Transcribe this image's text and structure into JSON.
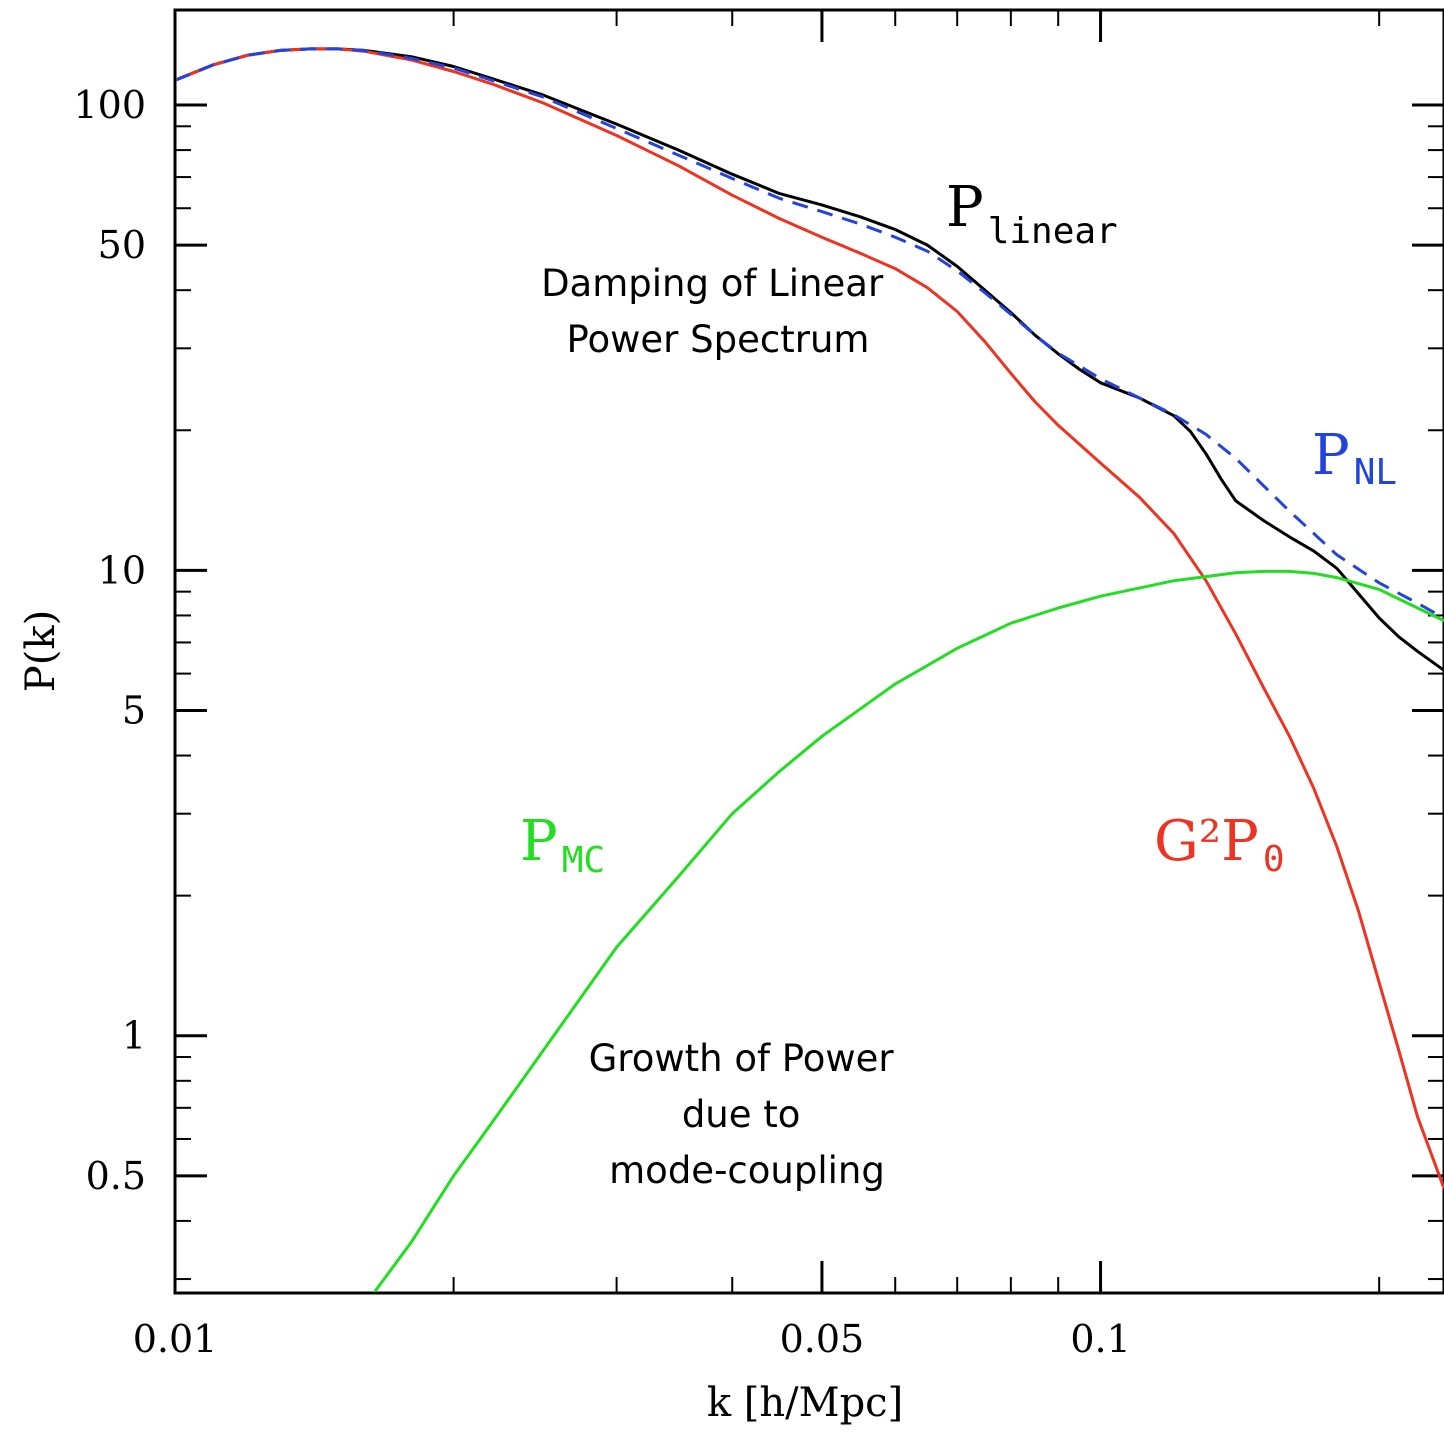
{
  "chart_data": {
    "type": "line",
    "xlabel": "k [h/Mpc]",
    "ylabel": "P(k)",
    "x_scale": "log",
    "y_scale": "log",
    "xlim": [
      0.01,
      0.235
    ],
    "ylim": [
      0.28,
      160
    ],
    "x_ticks": [
      {
        "value": 0.01,
        "label": "0.01"
      },
      {
        "value": 0.05,
        "label": "0.05"
      },
      {
        "value": 0.1,
        "label": "0.1"
      }
    ],
    "y_ticks": [
      {
        "value": 0.5,
        "label": "0.5"
      },
      {
        "value": 1,
        "label": "1"
      },
      {
        "value": 5,
        "label": "5"
      },
      {
        "value": 10,
        "label": "10"
      },
      {
        "value": 50,
        "label": "50"
      },
      {
        "value": 100,
        "label": "100"
      }
    ],
    "series": [
      {
        "id": "linear",
        "color": "#000000",
        "dash": "solid",
        "label": {
          "main": "P",
          "sub": "linear"
        },
        "points": [
          [
            0.01,
            113
          ],
          [
            0.011,
            122
          ],
          [
            0.012,
            128
          ],
          [
            0.013,
            131
          ],
          [
            0.014,
            132
          ],
          [
            0.015,
            132
          ],
          [
            0.016,
            131
          ],
          [
            0.018,
            127
          ],
          [
            0.02,
            121
          ],
          [
            0.022,
            114
          ],
          [
            0.025,
            105
          ],
          [
            0.03,
            91
          ],
          [
            0.035,
            80
          ],
          [
            0.04,
            71
          ],
          [
            0.045,
            64.5
          ],
          [
            0.05,
            61
          ],
          [
            0.055,
            57.5
          ],
          [
            0.06,
            54
          ],
          [
            0.065,
            50
          ],
          [
            0.07,
            45
          ],
          [
            0.075,
            40
          ],
          [
            0.08,
            35.8
          ],
          [
            0.085,
            32
          ],
          [
            0.09,
            29.2
          ],
          [
            0.095,
            27
          ],
          [
            0.1,
            25.3
          ],
          [
            0.11,
            23.5
          ],
          [
            0.12,
            21.5
          ],
          [
            0.125,
            19.9
          ],
          [
            0.13,
            17.8
          ],
          [
            0.135,
            15.7
          ],
          [
            0.14,
            14.1
          ],
          [
            0.15,
            12.8
          ],
          [
            0.16,
            11.8
          ],
          [
            0.17,
            11
          ],
          [
            0.18,
            10.1
          ],
          [
            0.19,
            8.9
          ],
          [
            0.2,
            7.9
          ],
          [
            0.21,
            7.2
          ],
          [
            0.22,
            6.7
          ],
          [
            0.235,
            6.1
          ]
        ]
      },
      {
        "id": "nl",
        "color": "#2244dd",
        "dash": "dashed",
        "label": {
          "main": "P",
          "sub": "NL"
        },
        "points": [
          [
            0.01,
            113
          ],
          [
            0.011,
            122
          ],
          [
            0.012,
            128
          ],
          [
            0.013,
            131
          ],
          [
            0.014,
            132
          ],
          [
            0.015,
            132
          ],
          [
            0.016,
            131
          ],
          [
            0.018,
            126
          ],
          [
            0.02,
            120
          ],
          [
            0.022,
            113
          ],
          [
            0.025,
            104
          ],
          [
            0.03,
            89
          ],
          [
            0.035,
            78
          ],
          [
            0.04,
            69.5
          ],
          [
            0.045,
            63
          ],
          [
            0.05,
            59
          ],
          [
            0.055,
            55.5
          ],
          [
            0.06,
            52
          ],
          [
            0.065,
            48.5
          ],
          [
            0.07,
            44
          ],
          [
            0.075,
            39.5
          ],
          [
            0.08,
            35.5
          ],
          [
            0.085,
            32
          ],
          [
            0.09,
            29.3
          ],
          [
            0.1,
            25.8
          ],
          [
            0.11,
            23.5
          ],
          [
            0.12,
            21.6
          ],
          [
            0.13,
            19.6
          ],
          [
            0.14,
            17.4
          ],
          [
            0.15,
            15.2
          ],
          [
            0.16,
            13.4
          ],
          [
            0.17,
            12
          ],
          [
            0.18,
            10.8
          ],
          [
            0.2,
            9.4
          ],
          [
            0.22,
            8.5
          ],
          [
            0.235,
            7.9
          ]
        ]
      },
      {
        "id": "g2p0",
        "color": "#ee3322",
        "dash": "solid",
        "label": {
          "main": "G²P",
          "sub": "0"
        },
        "points": [
          [
            0.01,
            113
          ],
          [
            0.011,
            122
          ],
          [
            0.012,
            128
          ],
          [
            0.013,
            131
          ],
          [
            0.014,
            132
          ],
          [
            0.015,
            132
          ],
          [
            0.016,
            130.5
          ],
          [
            0.018,
            125
          ],
          [
            0.02,
            118
          ],
          [
            0.022,
            111
          ],
          [
            0.025,
            101
          ],
          [
            0.03,
            86
          ],
          [
            0.035,
            74
          ],
          [
            0.04,
            64
          ],
          [
            0.045,
            57
          ],
          [
            0.05,
            52
          ],
          [
            0.055,
            48
          ],
          [
            0.06,
            44.5
          ],
          [
            0.065,
            40.5
          ],
          [
            0.07,
            36
          ],
          [
            0.075,
            31
          ],
          [
            0.08,
            26.5
          ],
          [
            0.085,
            23
          ],
          [
            0.09,
            20.5
          ],
          [
            0.1,
            17
          ],
          [
            0.11,
            14.4
          ],
          [
            0.12,
            12
          ],
          [
            0.13,
            9.5
          ],
          [
            0.14,
            7.3
          ],
          [
            0.15,
            5.6
          ],
          [
            0.16,
            4.4
          ],
          [
            0.17,
            3.4
          ],
          [
            0.18,
            2.55
          ],
          [
            0.19,
            1.85
          ],
          [
            0.2,
            1.3
          ],
          [
            0.21,
            0.93
          ],
          [
            0.22,
            0.67
          ],
          [
            0.235,
            0.47
          ]
        ]
      },
      {
        "id": "mc",
        "color": "#22dd22",
        "dash": "solid",
        "label": {
          "main": "P",
          "sub": "MC"
        },
        "points": [
          [
            0.0164,
            0.28
          ],
          [
            0.018,
            0.36
          ],
          [
            0.02,
            0.5
          ],
          [
            0.022,
            0.65
          ],
          [
            0.025,
            0.93
          ],
          [
            0.03,
            1.55
          ],
          [
            0.035,
            2.2
          ],
          [
            0.04,
            3
          ],
          [
            0.045,
            3.7
          ],
          [
            0.05,
            4.4
          ],
          [
            0.06,
            5.7
          ],
          [
            0.07,
            6.8
          ],
          [
            0.08,
            7.7
          ],
          [
            0.09,
            8.3
          ],
          [
            0.1,
            8.8
          ],
          [
            0.12,
            9.5
          ],
          [
            0.14,
            9.88
          ],
          [
            0.15,
            9.95
          ],
          [
            0.16,
            9.95
          ],
          [
            0.17,
            9.85
          ],
          [
            0.18,
            9.65
          ],
          [
            0.2,
            9.1
          ],
          [
            0.22,
            8.3
          ],
          [
            0.235,
            7.8
          ]
        ]
      }
    ],
    "annotations": {
      "damping": [
        "Damping of Linear",
        "Power Spectrum"
      ],
      "growth": [
        "Growth of Power",
        "due to",
        "mode-coupling"
      ]
    }
  }
}
